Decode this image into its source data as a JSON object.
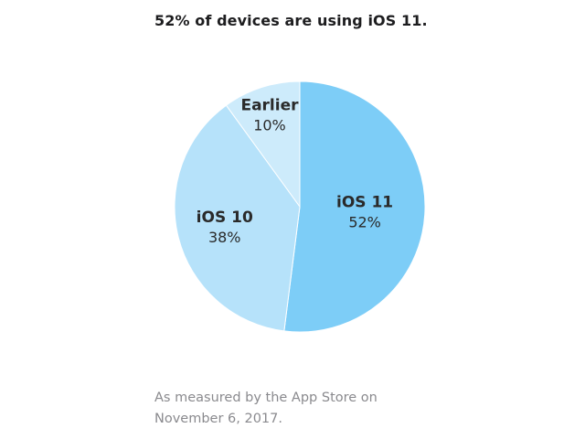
{
  "title": "52% of devices are using iOS 11.",
  "chart_data": {
    "type": "pie",
    "title": "52% of devices are using iOS 11.",
    "start_angle_deg": 0,
    "direction": "clockwise",
    "slices": [
      {
        "name": "iOS 11",
        "value": 52,
        "label": "52%",
        "color": "#7dcdf7"
      },
      {
        "name": "iOS 10",
        "value": 38,
        "label": "38%",
        "color": "#b6e2fa"
      },
      {
        "name": "Earlier",
        "value": 10,
        "label": "10%",
        "color": "#cdebfb"
      }
    ]
  },
  "footnote": {
    "line1": "As measured by the App Store on",
    "line2": "November 6, 2017."
  }
}
